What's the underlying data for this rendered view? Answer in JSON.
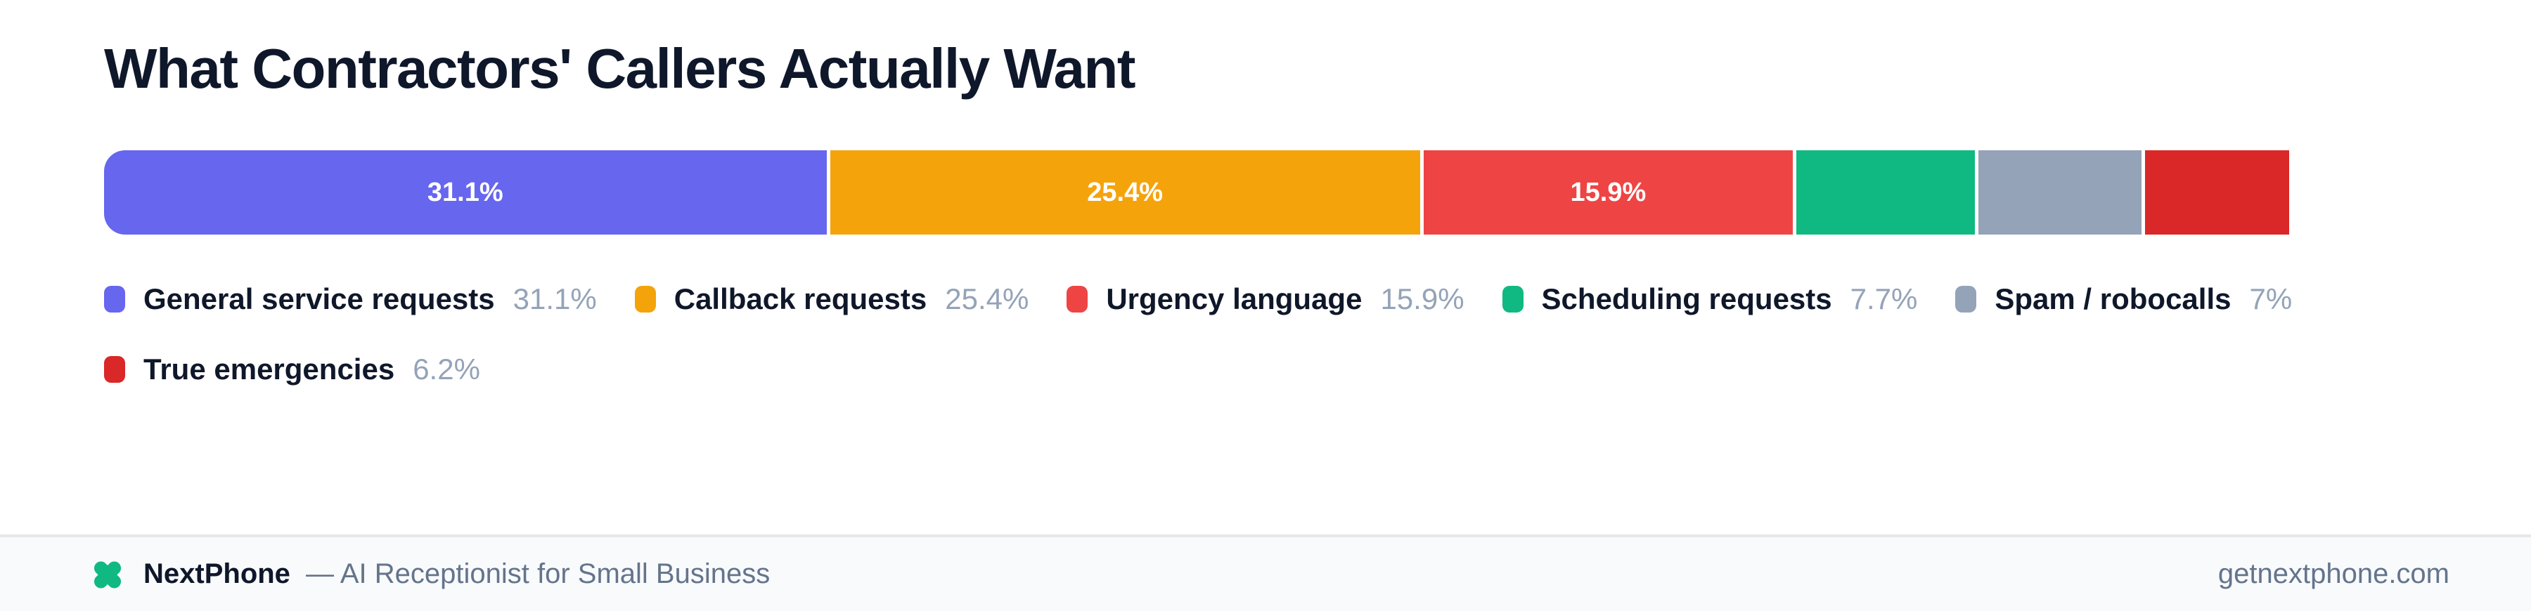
{
  "title": "What Contractors' Callers Actually Want",
  "chart_data": {
    "type": "bar",
    "variant": "horizontal-stacked-single-bar",
    "title": "What Contractors' Callers Actually Want",
    "unit": "%",
    "axis_range": [
      0,
      100
    ],
    "total_shown": 93.3,
    "legend_position": "below",
    "grid": false,
    "categories": [
      "General service requests",
      "Callback requests",
      "Urgency language",
      "Scheduling requests",
      "Spam / robocalls",
      "True emergencies"
    ],
    "values": [
      31.1,
      25.4,
      15.9,
      7.7,
      7,
      6.2
    ],
    "segments": [
      {
        "label": "General service requests",
        "value": 31.1,
        "pct_text": "31.1%",
        "bar_label": "31.1%",
        "color": "#6766EF"
      },
      {
        "label": "Callback requests",
        "value": 25.4,
        "pct_text": "25.4%",
        "bar_label": "25.4%",
        "color": "#F5A30B"
      },
      {
        "label": "Urgency language",
        "value": 15.9,
        "pct_text": "15.9%",
        "bar_label": "15.9%",
        "color": "#EF4444"
      },
      {
        "label": "Scheduling requests",
        "value": 7.7,
        "pct_text": "7.7%",
        "bar_label": "",
        "color": "#10B981"
      },
      {
        "label": "Spam / robocalls",
        "value": 7,
        "pct_text": "7%",
        "bar_label": "",
        "color": "#94A3B8"
      },
      {
        "label": "True emergencies",
        "value": 6.2,
        "pct_text": "6.2%",
        "bar_label": "",
        "color": "#DA2727"
      }
    ]
  },
  "footer": {
    "brand": "NextPhone",
    "tagline": "— AI Receptionist for Small Business",
    "domain": "getnextphone.com",
    "logo_icon": "green-x-clover-icon",
    "logo_color": "#10B981",
    "background": "#F8FAFC",
    "border_color": "#E5E7EB"
  },
  "colors": {
    "page_background": "#FFFFFF",
    "title_text": "#0F172A",
    "legend_label_text": "#0F172A",
    "legend_value_text": "#94A3B8",
    "bar_label_text": "#FFFFFF"
  }
}
